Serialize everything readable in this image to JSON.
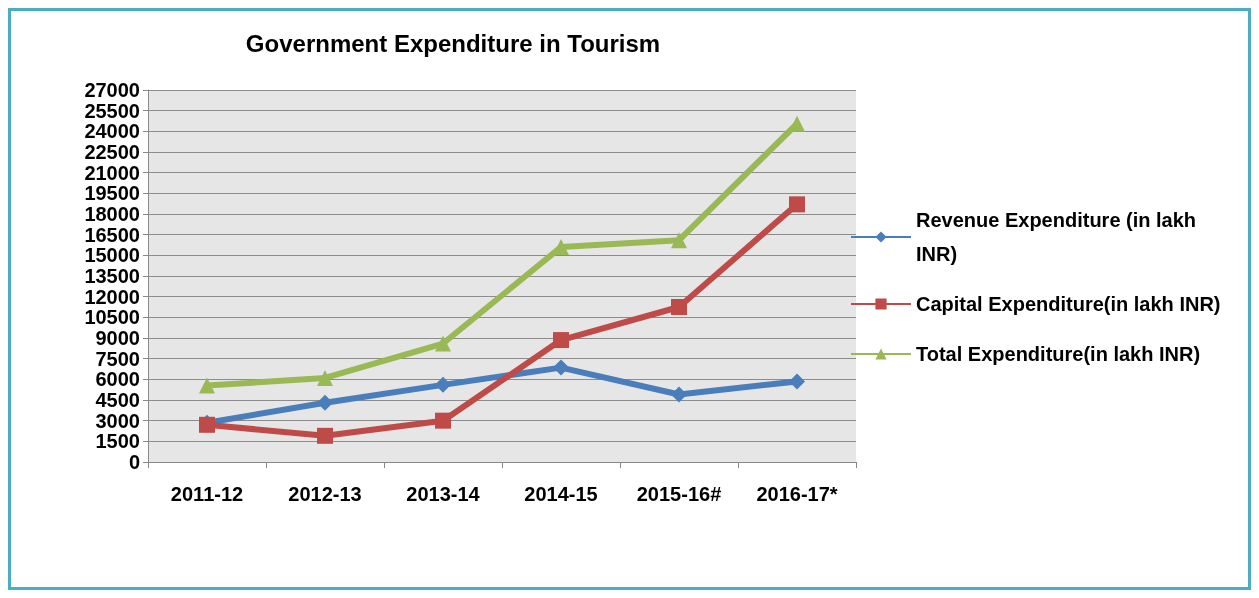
{
  "chart_data": {
    "type": "line",
    "title": "Government Expenditure in Tourism",
    "categories": [
      "2011-12",
      "2012-13",
      "2013-14",
      "2014-15",
      "2015-16#",
      "2016-17*"
    ],
    "series": [
      {
        "name": "Revenue Expenditure (in lakh INR)",
        "color": "#4a7ebb",
        "marker": "diamond",
        "values": [
          2850,
          4300,
          5600,
          6850,
          4900,
          5850
        ]
      },
      {
        "name": "Capital Expenditure(in lakh INR)",
        "color": "#be4b48",
        "marker": "square",
        "values": [
          2700,
          1900,
          3000,
          8850,
          11250,
          18700
        ]
      },
      {
        "name": "Total Expenditure(in lakh INR)",
        "color": "#98b954",
        "marker": "triangle",
        "values": [
          5550,
          6100,
          8600,
          15600,
          16100,
          24550
        ]
      }
    ],
    "ylim": [
      0,
      27000
    ],
    "yticks": [
      0,
      1500,
      3000,
      4500,
      6000,
      7500,
      9000,
      10500,
      12000,
      13500,
      15000,
      16500,
      18000,
      19500,
      21000,
      22500,
      24000,
      25500,
      27000
    ],
    "grid": "y",
    "legend": "right"
  }
}
